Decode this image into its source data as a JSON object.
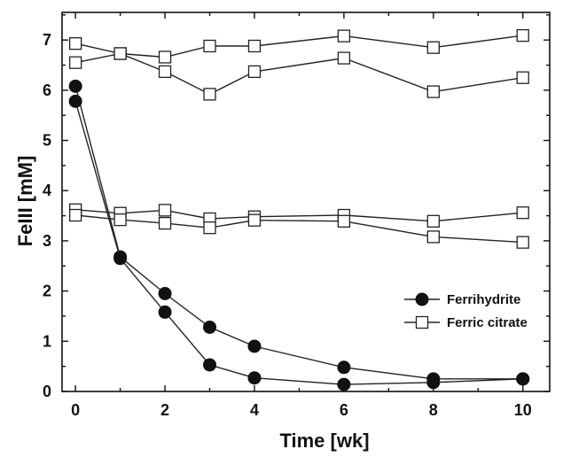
{
  "chart_data": {
    "type": "line",
    "xlabel": "Time [wk]",
    "ylabel": "FeIII [mM]",
    "xlim": [
      -0.3,
      10.6
    ],
    "ylim": [
      0,
      7.55
    ],
    "xticks": [
      0,
      2,
      4,
      6,
      8,
      10
    ],
    "yticks": [
      0,
      1,
      2,
      3,
      4,
      5,
      6,
      7
    ],
    "grid": false,
    "legend_position": "right",
    "legend": [
      {
        "label": "Ferrihydrite",
        "marker": "filled-circle"
      },
      {
        "label": "Ferric citrate",
        "marker": "open-square"
      }
    ],
    "x": [
      0,
      1,
      2,
      3,
      4,
      6,
      8,
      10
    ],
    "series": [
      {
        "group": "Ferrihydrite",
        "marker": "filled-circle",
        "values": [
          6.08,
          2.68,
          1.95,
          1.28,
          0.9,
          0.48,
          0.25,
          0.25
        ]
      },
      {
        "group": "Ferrihydrite",
        "marker": "filled-circle",
        "values": [
          5.78,
          2.65,
          1.58,
          0.53,
          0.27,
          0.14,
          0.18,
          0.25
        ]
      },
      {
        "group": "Ferric citrate",
        "marker": "open-square",
        "values": [
          6.93,
          6.73,
          6.66,
          6.88,
          6.88,
          7.08,
          6.85,
          7.09
        ]
      },
      {
        "group": "Ferric citrate",
        "marker": "open-square",
        "values": [
          6.55,
          6.73,
          6.37,
          5.92,
          6.37,
          6.64,
          5.97,
          6.25
        ]
      },
      {
        "group": "Ferric citrate",
        "marker": "open-square",
        "values": [
          3.62,
          3.55,
          3.61,
          3.44,
          3.48,
          3.51,
          3.39,
          3.56
        ]
      },
      {
        "group": "Ferric citrate",
        "marker": "open-square",
        "values": [
          3.51,
          3.42,
          3.35,
          3.26,
          3.41,
          3.39,
          3.08,
          2.97
        ]
      }
    ],
    "colors": {
      "line": "#222222",
      "marker_fill": "#111111",
      "axis": "#111111"
    }
  }
}
